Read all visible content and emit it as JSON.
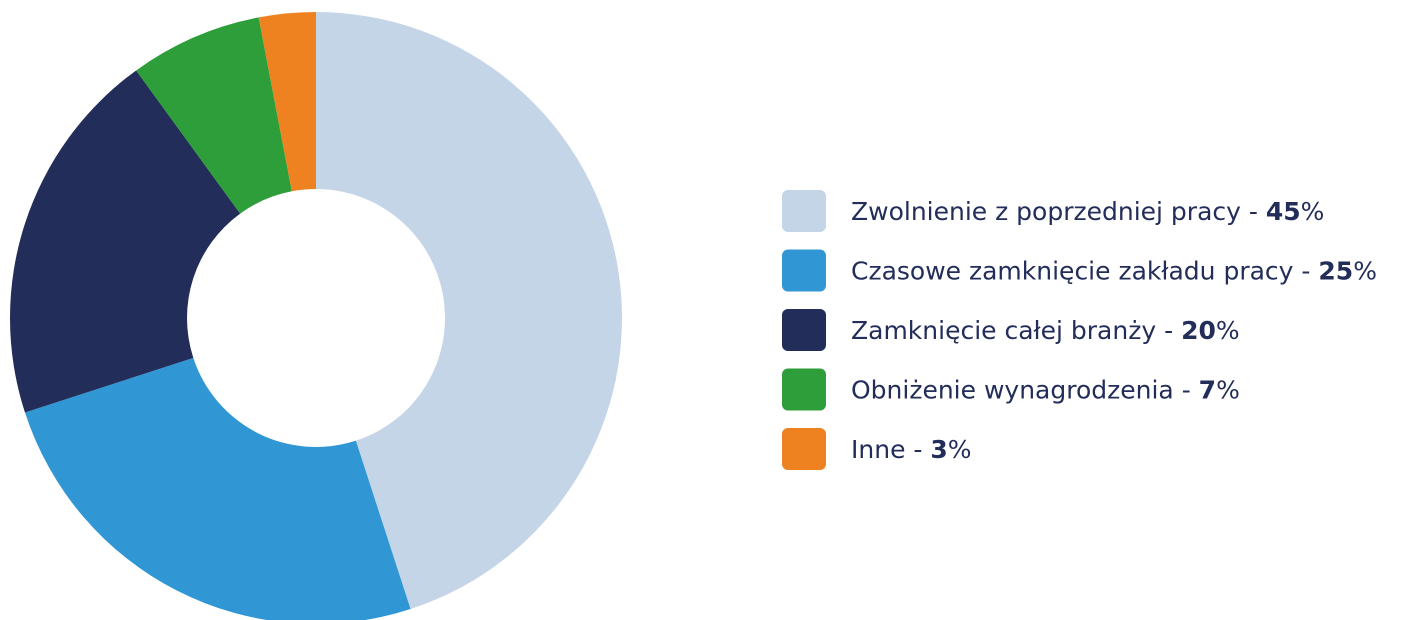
{
  "chart_data": {
    "type": "donut",
    "categories": [
      "Zwolnienie z poprzedniej pracy",
      "Czasowe zamknięcie zakładu pracy",
      "Zamknięcie całej branży",
      "Obniżenie wynagrodzenia",
      "Inne"
    ],
    "values": [
      45,
      25,
      20,
      7,
      3
    ],
    "colors": [
      "#c5d5e8",
      "#3096d4",
      "#232d5a",
      "#2e9e3a",
      "#ef8220"
    ],
    "label_separator": " - ",
    "value_suffix": "%",
    "legend": "right"
  }
}
